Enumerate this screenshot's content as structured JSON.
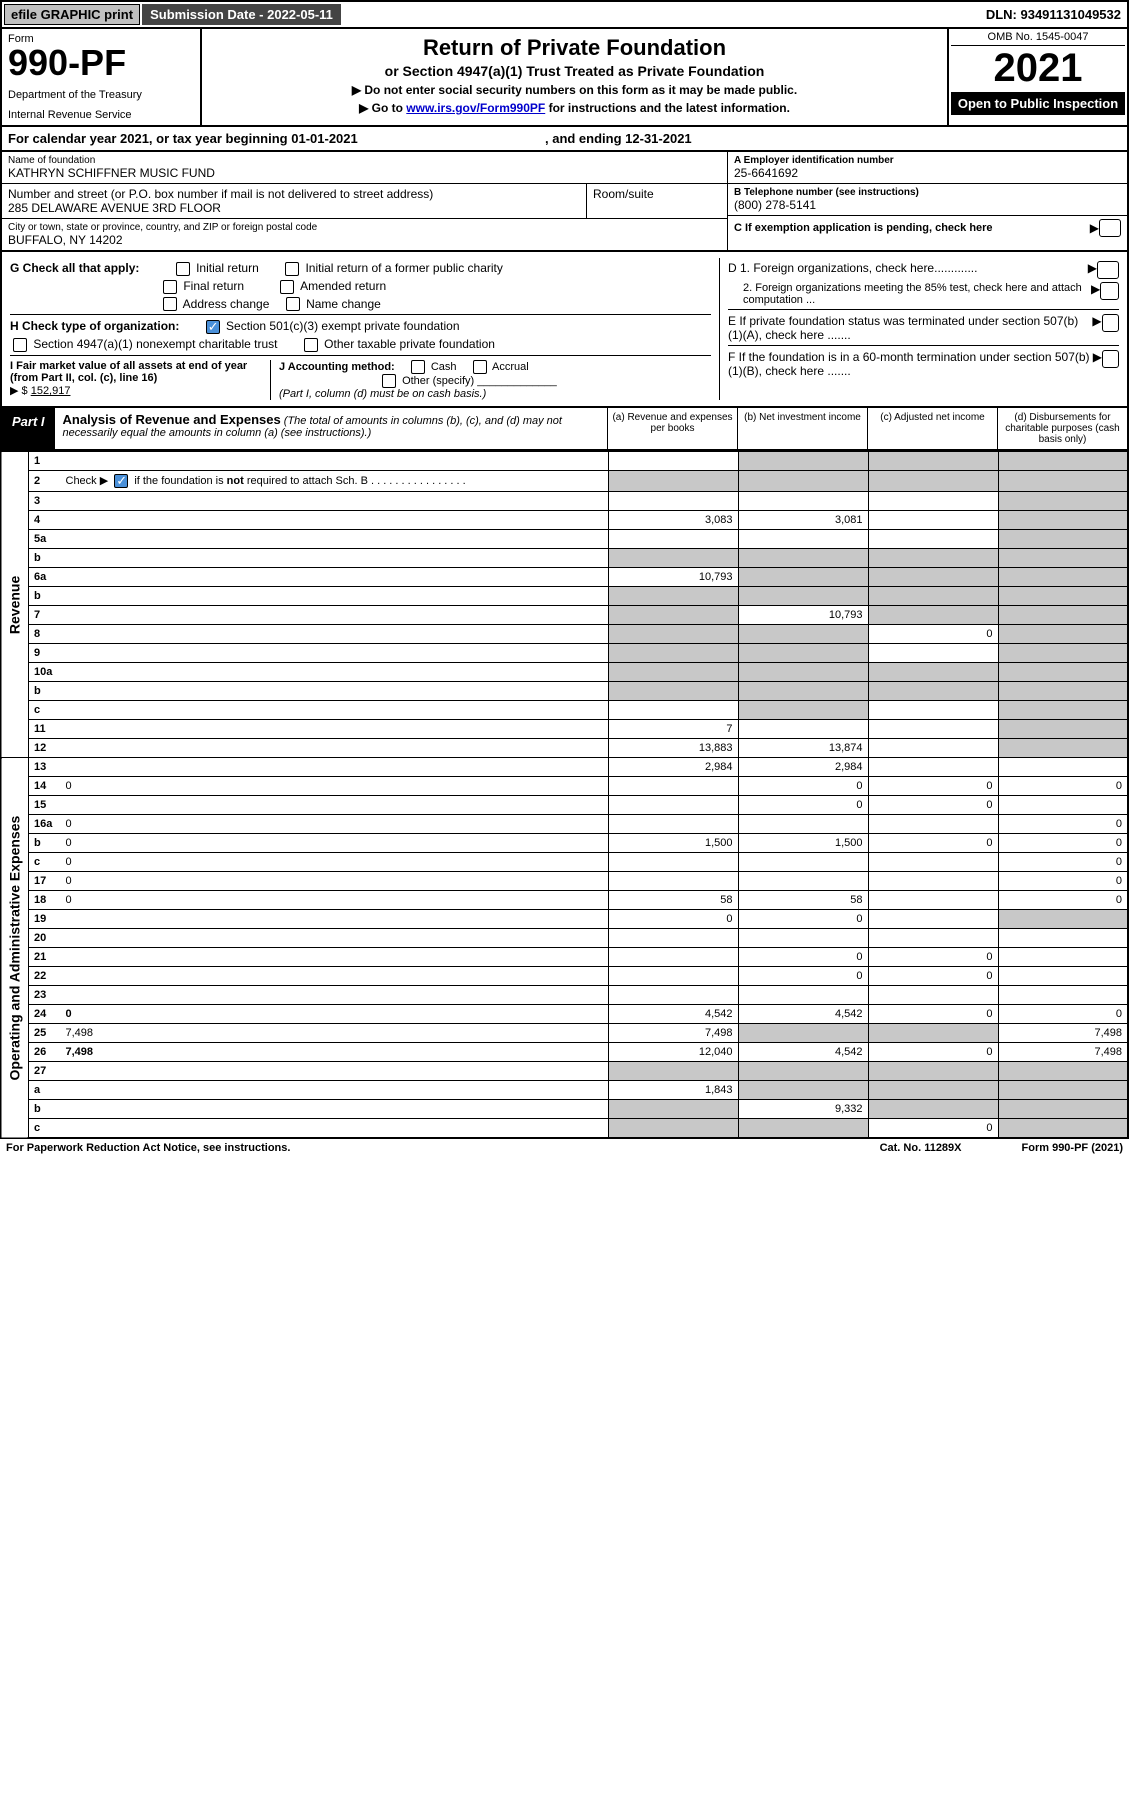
{
  "topbar": {
    "efile": "efile GRAPHIC print",
    "submission_label": "Submission Date - ",
    "submission_date": "2022-05-11",
    "dln_label": "DLN: ",
    "dln": "93491131049532"
  },
  "header": {
    "form_word": "Form",
    "form_number": "990-PF",
    "dept1": "Department of the Treasury",
    "dept2": "Internal Revenue Service",
    "title": "Return of Private Foundation",
    "subtitle": "or Section 4947(a)(1) Trust Treated as Private Foundation",
    "note1": "▶ Do not enter social security numbers on this form as it may be made public.",
    "note2_pre": "▶ Go to ",
    "note2_link": "www.irs.gov/Form990PF",
    "note2_post": " for instructions and the latest information.",
    "omb": "OMB No. 1545-0047",
    "year": "2021",
    "open_public": "Open to Public Inspection"
  },
  "calyear": {
    "text_pre": "For calendar year 2021, or tax year beginning ",
    "begin": "01-01-2021",
    "mid": " , and ending ",
    "end": "12-31-2021"
  },
  "info": {
    "name_label": "Name of foundation",
    "name": "KATHRYN SCHIFFNER MUSIC FUND",
    "addr_label": "Number and street (or P.O. box number if mail is not delivered to street address)",
    "addr": "285 DELAWARE AVENUE 3RD FLOOR",
    "room_label": "Room/suite",
    "city_label": "City or town, state or province, country, and ZIP or foreign postal code",
    "city": "BUFFALO, NY  14202",
    "ein_label": "A Employer identification number",
    "ein": "25-6641692",
    "tel_label": "B Telephone number (see instructions)",
    "tel": "(800) 278-5141",
    "c_label": "C If exemption application is pending, check here",
    "d1": "D 1. Foreign organizations, check here.............",
    "d2": "2. Foreign organizations meeting the 85% test, check here and attach computation ...",
    "e": "E  If private foundation status was terminated under section 507(b)(1)(A), check here .......",
    "f": "F  If the foundation is in a 60-month termination under section 507(b)(1)(B), check here .......",
    "arrow": "▶"
  },
  "checks": {
    "g_label": "G Check all that apply:",
    "g_opts": [
      "Initial return",
      "Initial return of a former public charity",
      "Final return",
      "Amended return",
      "Address change",
      "Name change"
    ],
    "h_label": "H Check type of organization:",
    "h_opt1": "Section 501(c)(3) exempt private foundation",
    "h_opt2": "Section 4947(a)(1) nonexempt charitable trust",
    "h_opt3": "Other taxable private foundation",
    "i_label": "I Fair market value of all assets at end of year (from Part II, col. (c), line 16)",
    "i_val": "152,917",
    "i_prefix": "▶ $",
    "j_label": "J Accounting method:",
    "j_cash": "Cash",
    "j_accrual": "Accrual",
    "j_other": "Other (specify)",
    "j_note": "(Part I, column (d) must be on cash basis.)"
  },
  "partI": {
    "label": "Part I",
    "title": "Analysis of Revenue and Expenses",
    "note": "(The total of amounts in columns (b), (c), and (d) may not necessarily equal the amounts in column (a) (see instructions).)",
    "col_a": "(a)    Revenue and expenses per books",
    "col_b": "(b)    Net investment income",
    "col_c": "(c)    Adjusted net income",
    "col_d": "(d)    Disbursements for charitable purposes (cash basis only)"
  },
  "side": {
    "revenue": "Revenue",
    "expenses": "Operating and Administrative Expenses"
  },
  "rows": [
    {
      "n": "1",
      "d": "",
      "a": "",
      "b": "",
      "c": "",
      "ga": false,
      "gb": true,
      "gc": true,
      "gd": true
    },
    {
      "n": "2",
      "d": "",
      "a": "",
      "b": "",
      "c": "",
      "ga": true,
      "gb": true,
      "gc": true,
      "gd": true,
      "hascheck": true
    },
    {
      "n": "3",
      "d": "",
      "a": "",
      "b": "",
      "c": "",
      "ga": false,
      "gb": false,
      "gc": false,
      "gd": true
    },
    {
      "n": "4",
      "d": "",
      "a": "3,083",
      "b": "3,081",
      "c": "",
      "ga": false,
      "gb": false,
      "gc": false,
      "gd": true
    },
    {
      "n": "5a",
      "d": "",
      "a": "",
      "b": "",
      "c": "",
      "ga": false,
      "gb": false,
      "gc": false,
      "gd": true
    },
    {
      "n": "b",
      "d": "",
      "a": "",
      "b": "",
      "c": "",
      "ga": true,
      "gb": true,
      "gc": true,
      "gd": true
    },
    {
      "n": "6a",
      "d": "",
      "a": "10,793",
      "b": "",
      "c": "",
      "ga": false,
      "gb": true,
      "gc": true,
      "gd": true
    },
    {
      "n": "b",
      "d": "",
      "a": "",
      "b": "",
      "c": "",
      "ga": true,
      "gb": true,
      "gc": true,
      "gd": true
    },
    {
      "n": "7",
      "d": "",
      "a": "",
      "b": "10,793",
      "c": "",
      "ga": true,
      "gb": false,
      "gc": true,
      "gd": true
    },
    {
      "n": "8",
      "d": "",
      "a": "",
      "b": "",
      "c": "0",
      "ga": true,
      "gb": true,
      "gc": false,
      "gd": true
    },
    {
      "n": "9",
      "d": "",
      "a": "",
      "b": "",
      "c": "",
      "ga": true,
      "gb": true,
      "gc": false,
      "gd": true
    },
    {
      "n": "10a",
      "d": "",
      "a": "",
      "b": "",
      "c": "",
      "ga": true,
      "gb": true,
      "gc": true,
      "gd": true
    },
    {
      "n": "b",
      "d": "",
      "a": "",
      "b": "",
      "c": "",
      "ga": true,
      "gb": true,
      "gc": true,
      "gd": true
    },
    {
      "n": "c",
      "d": "",
      "a": "",
      "b": "",
      "c": "",
      "ga": false,
      "gb": true,
      "gc": false,
      "gd": true
    },
    {
      "n": "11",
      "d": "",
      "a": "7",
      "b": "",
      "c": "",
      "ga": false,
      "gb": false,
      "gc": false,
      "gd": true
    },
    {
      "n": "12",
      "d": "",
      "a": "13,883",
      "b": "13,874",
      "c": "",
      "ga": false,
      "gb": false,
      "gc": false,
      "gd": true,
      "bold": true
    },
    {
      "n": "13",
      "d": "",
      "a": "2,984",
      "b": "2,984",
      "c": "",
      "ga": false,
      "gb": false,
      "gc": false,
      "gd": false
    },
    {
      "n": "14",
      "d": "0",
      "a": "",
      "b": "0",
      "c": "0",
      "ga": false,
      "gb": false,
      "gc": false,
      "gd": false
    },
    {
      "n": "15",
      "d": "",
      "a": "",
      "b": "0",
      "c": "0",
      "ga": false,
      "gb": false,
      "gc": false,
      "gd": false
    },
    {
      "n": "16a",
      "d": "0",
      "a": "",
      "b": "",
      "c": "",
      "ga": false,
      "gb": false,
      "gc": false,
      "gd": false
    },
    {
      "n": "b",
      "d": "0",
      "a": "1,500",
      "b": "1,500",
      "c": "0",
      "ga": false,
      "gb": false,
      "gc": false,
      "gd": false
    },
    {
      "n": "c",
      "d": "0",
      "a": "",
      "b": "",
      "c": "",
      "ga": false,
      "gb": false,
      "gc": false,
      "gd": false
    },
    {
      "n": "17",
      "d": "0",
      "a": "",
      "b": "",
      "c": "",
      "ga": false,
      "gb": false,
      "gc": false,
      "gd": false
    },
    {
      "n": "18",
      "d": "0",
      "a": "58",
      "b": "58",
      "c": "",
      "ga": false,
      "gb": false,
      "gc": false,
      "gd": false
    },
    {
      "n": "19",
      "d": "",
      "a": "0",
      "b": "0",
      "c": "",
      "ga": false,
      "gb": false,
      "gc": false,
      "gd": true
    },
    {
      "n": "20",
      "d": "",
      "a": "",
      "b": "",
      "c": "",
      "ga": false,
      "gb": false,
      "gc": false,
      "gd": false
    },
    {
      "n": "21",
      "d": "",
      "a": "",
      "b": "0",
      "c": "0",
      "ga": false,
      "gb": false,
      "gc": false,
      "gd": false
    },
    {
      "n": "22",
      "d": "",
      "a": "",
      "b": "0",
      "c": "0",
      "ga": false,
      "gb": false,
      "gc": false,
      "gd": false
    },
    {
      "n": "23",
      "d": "",
      "a": "",
      "b": "",
      "c": "",
      "ga": false,
      "gb": false,
      "gc": false,
      "gd": false
    },
    {
      "n": "24",
      "d": "0",
      "a": "4,542",
      "b": "4,542",
      "c": "0",
      "ga": false,
      "gb": false,
      "gc": false,
      "gd": false,
      "bold": true
    },
    {
      "n": "25",
      "d": "7,498",
      "a": "7,498",
      "b": "",
      "c": "",
      "ga": false,
      "gb": true,
      "gc": true,
      "gd": false
    },
    {
      "n": "26",
      "d": "7,498",
      "a": "12,040",
      "b": "4,542",
      "c": "0",
      "ga": false,
      "gb": false,
      "gc": false,
      "gd": false,
      "bold": true
    },
    {
      "n": "27",
      "d": "",
      "a": "",
      "b": "",
      "c": "",
      "ga": true,
      "gb": true,
      "gc": true,
      "gd": true
    },
    {
      "n": "a",
      "d": "",
      "a": "1,843",
      "b": "",
      "c": "",
      "ga": false,
      "gb": true,
      "gc": true,
      "gd": true,
      "bold": true
    },
    {
      "n": "b",
      "d": "",
      "a": "",
      "b": "9,332",
      "c": "",
      "ga": true,
      "gb": false,
      "gc": true,
      "gd": true,
      "bold": true
    },
    {
      "n": "c",
      "d": "",
      "a": "",
      "b": "",
      "c": "0",
      "ga": true,
      "gb": true,
      "gc": false,
      "gd": true,
      "bold": true
    }
  ],
  "footer": {
    "left": "For Paperwork Reduction Act Notice, see instructions.",
    "center": "Cat. No. 11289X",
    "right": "Form 990-PF (2021)"
  }
}
